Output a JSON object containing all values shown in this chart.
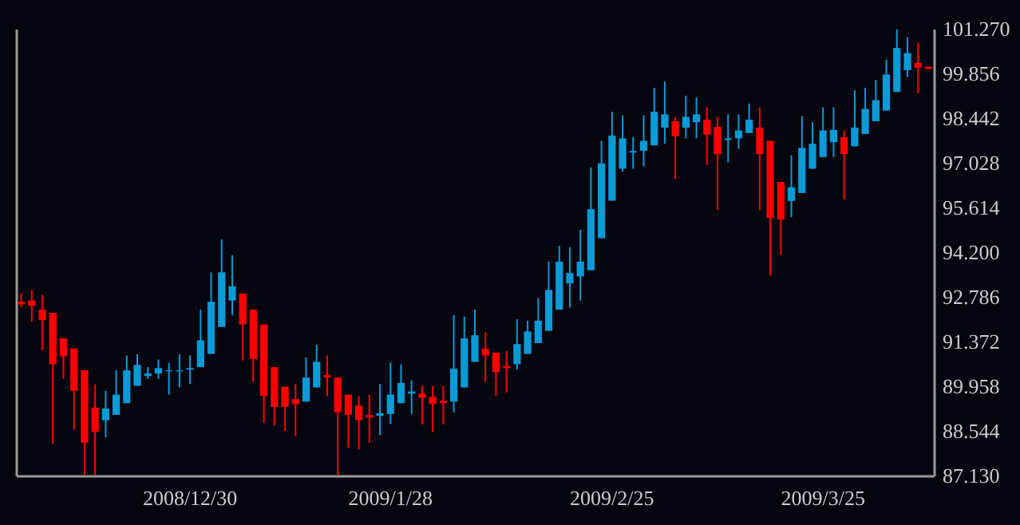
{
  "chart_data": {
    "type": "candlestick",
    "categories": [
      null,
      null,
      null,
      null,
      null,
      null,
      null,
      null,
      null,
      null,
      null,
      null,
      null,
      null,
      null,
      null,
      "2008/12/30",
      null,
      null,
      null,
      null,
      null,
      null,
      null,
      null,
      null,
      null,
      null,
      null,
      null,
      null,
      null,
      null,
      null,
      null,
      "2009/1/28",
      null,
      null,
      null,
      null,
      null,
      null,
      null,
      null,
      null,
      null,
      null,
      null,
      null,
      null,
      null,
      null,
      null,
      null,
      null,
      null,
      "2009/2/25",
      null,
      null,
      null,
      null,
      null,
      null,
      null,
      null,
      null,
      null,
      null,
      null,
      null,
      null,
      null,
      null,
      null,
      null,
      null,
      "2009/3/25",
      null,
      null,
      null,
      null,
      null,
      null,
      null,
      null,
      null,
      null
    ],
    "ohlc": [
      [
        92.63,
        92.89,
        92.45,
        92.55
      ],
      [
        92.67,
        93.0,
        92.0,
        92.5
      ],
      [
        92.38,
        92.84,
        91.1,
        92.05
      ],
      [
        92.28,
        92.28,
        88.12,
        90.65
      ],
      [
        91.47,
        91.47,
        90.19,
        90.9
      ],
      [
        91.15,
        91.15,
        88.58,
        89.81
      ],
      [
        90.46,
        90.46,
        87.13,
        88.17
      ],
      [
        89.28,
        90.01,
        87.13,
        88.51
      ],
      [
        88.88,
        89.81,
        88.34,
        89.25
      ],
      [
        89.05,
        90.46,
        89.05,
        89.69
      ],
      [
        89.42,
        90.93,
        89.42,
        90.46
      ],
      [
        89.97,
        90.97,
        89.97,
        90.63
      ],
      [
        90.28,
        90.56,
        90.19,
        90.36
      ],
      [
        90.36,
        90.8,
        90.19,
        90.53
      ],
      [
        90.43,
        90.7,
        89.69,
        90.46
      ],
      [
        90.43,
        90.97,
        89.92,
        90.46
      ],
      [
        90.48,
        90.93,
        90.03,
        90.53
      ],
      [
        90.56,
        92.38,
        90.56,
        91.41
      ],
      [
        90.98,
        93.56,
        90.98,
        92.63
      ],
      [
        91.83,
        94.6,
        91.83,
        93.56
      ],
      [
        92.67,
        94.1,
        92.21,
        93.12
      ],
      [
        92.89,
        92.89,
        90.77,
        91.91
      ],
      [
        92.38,
        92.38,
        90.09,
        90.82
      ],
      [
        91.91,
        91.91,
        88.8,
        89.64
      ],
      [
        90.56,
        90.56,
        88.71,
        89.3
      ],
      [
        89.94,
        89.94,
        88.54,
        89.3
      ],
      [
        89.55,
        90.03,
        88.38,
        89.39
      ],
      [
        89.47,
        90.87,
        89.47,
        90.23
      ],
      [
        89.92,
        91.27,
        89.92,
        90.73
      ],
      [
        90.31,
        90.93,
        89.64,
        90.23
      ],
      [
        90.23,
        90.23,
        87.13,
        89.13
      ],
      [
        89.69,
        89.69,
        88.01,
        89.05
      ],
      [
        89.34,
        89.64,
        87.95,
        88.88
      ],
      [
        89.05,
        89.69,
        88.17,
        88.97
      ],
      [
        89.02,
        90.03,
        88.41,
        89.1
      ],
      [
        89.08,
        90.7,
        88.76,
        89.69
      ],
      [
        89.42,
        90.65,
        89.42,
        90.06
      ],
      [
        89.72,
        90.14,
        89.08,
        89.79
      ],
      [
        89.72,
        89.97,
        88.75,
        89.59
      ],
      [
        89.62,
        89.96,
        88.51,
        89.39
      ],
      [
        89.5,
        89.97,
        88.75,
        89.42
      ],
      [
        89.47,
        92.21,
        89.13,
        90.51
      ],
      [
        89.92,
        92.16,
        89.92,
        91.47
      ],
      [
        90.73,
        92.38,
        90.73,
        91.57
      ],
      [
        91.14,
        91.66,
        90.09,
        90.93
      ],
      [
        91.02,
        91.02,
        89.64,
        90.4
      ],
      [
        90.6,
        91.07,
        89.76,
        90.53
      ],
      [
        90.65,
        92.08,
        90.48,
        91.29
      ],
      [
        90.98,
        92.03,
        90.98,
        91.69
      ],
      [
        91.32,
        92.75,
        91.32,
        92.03
      ],
      [
        91.71,
        93.9,
        91.71,
        93.0
      ],
      [
        92.38,
        94.4,
        92.38,
        93.9
      ],
      [
        93.21,
        94.35,
        92.45,
        93.54
      ],
      [
        93.43,
        94.91,
        92.67,
        93.9
      ],
      [
        93.63,
        96.88,
        93.63,
        95.56
      ],
      [
        94.64,
        97.72,
        94.64,
        97.01
      ],
      [
        95.83,
        98.64,
        95.83,
        97.89
      ],
      [
        96.84,
        98.53,
        96.74,
        97.8
      ],
      [
        97.35,
        97.84,
        96.84,
        97.4
      ],
      [
        97.41,
        98.53,
        96.91,
        97.72
      ],
      [
        97.58,
        99.4,
        97.58,
        98.64
      ],
      [
        98.14,
        99.6,
        97.63,
        98.56
      ],
      [
        98.34,
        98.48,
        96.51,
        97.87
      ],
      [
        98.14,
        99.15,
        97.8,
        98.48
      ],
      [
        98.31,
        99.1,
        97.8,
        98.56
      ],
      [
        98.39,
        98.78,
        96.96,
        97.92
      ],
      [
        98.17,
        98.48,
        95.53,
        97.3
      ],
      [
        97.75,
        98.56,
        97.04,
        97.8
      ],
      [
        97.8,
        98.56,
        97.47,
        98.05
      ],
      [
        97.97,
        98.9,
        97.97,
        98.39
      ],
      [
        98.14,
        98.78,
        95.53,
        97.3
      ],
      [
        97.72,
        97.72,
        93.46,
        95.28
      ],
      [
        96.42,
        96.42,
        94.1,
        95.23
      ],
      [
        95.82,
        97.26,
        95.31,
        96.25
      ],
      [
        96.07,
        98.51,
        96.07,
        97.5
      ],
      [
        96.84,
        98.31,
        96.84,
        97.63
      ],
      [
        97.21,
        98.78,
        97.21,
        98.05
      ],
      [
        97.68,
        98.78,
        97.21,
        98.07
      ],
      [
        97.84,
        98.05,
        95.87,
        97.3
      ],
      [
        97.55,
        99.32,
        97.55,
        98.14
      ],
      [
        97.94,
        99.4,
        97.94,
        98.73
      ],
      [
        98.34,
        99.65,
        98.34,
        99.01
      ],
      [
        98.68,
        100.29,
        98.68,
        99.82
      ],
      [
        99.27,
        101.25,
        99.27,
        100.66
      ],
      [
        99.96,
        101.0,
        99.74,
        100.5
      ],
      [
        100.19,
        100.83,
        99.23,
        100.04
      ],
      [
        100.07,
        100.07,
        100.0,
        100.0
      ]
    ],
    "colors": [
      "#ff0000",
      "#ff0000",
      "#ff0000",
      "#ff0000",
      "#ff0000",
      "#ff0000",
      "#ff0000",
      "#ff0000",
      "#0a9ad6",
      "#0a9ad6",
      "#0a9ad6",
      "#0a9ad6",
      "#0a9ad6",
      "#0a9ad6",
      "#0a9ad6",
      "#0a9ad6",
      "#0a9ad6",
      "#0a9ad6",
      "#0a9ad6",
      "#0a9ad6",
      "#0a9ad6",
      "#ff0000",
      "#ff0000",
      "#ff0000",
      "#ff0000",
      "#ff0000",
      "#ff0000",
      "#0a9ad6",
      "#0a9ad6",
      "#ff0000",
      "#ff0000",
      "#ff0000",
      "#ff0000",
      "#ff0000",
      "#0a9ad6",
      "#0a9ad6",
      "#0a9ad6",
      "#0a9ad6",
      "#ff0000",
      "#ff0000",
      "#ff0000",
      "#0a9ad6",
      "#0a9ad6",
      "#0a9ad6",
      "#ff0000",
      "#ff0000",
      "#ff0000",
      "#0a9ad6",
      "#0a9ad6",
      "#0a9ad6",
      "#0a9ad6",
      "#0a9ad6",
      "#0a9ad6",
      "#0a9ad6",
      "#0a9ad6",
      "#0a9ad6",
      "#0a9ad6",
      "#0a9ad6",
      "#0a9ad6",
      "#0a9ad6",
      "#0a9ad6",
      "#0a9ad6",
      "#ff0000",
      "#0a9ad6",
      "#0a9ad6",
      "#ff0000",
      "#ff0000",
      "#0a9ad6",
      "#0a9ad6",
      "#0a9ad6",
      "#ff0000",
      "#ff0000",
      "#ff0000",
      "#0a9ad6",
      "#0a9ad6",
      "#0a9ad6",
      "#0a9ad6",
      "#0a9ad6",
      "#ff0000",
      "#0a9ad6",
      "#0a9ad6",
      "#0a9ad6",
      "#0a9ad6",
      "#0a9ad6",
      "#0a9ad6",
      "#ff0000",
      "#ff0000"
    ],
    "ylim": [
      87.13,
      101.27
    ],
    "yticks": [
      {
        "value": 87.13,
        "label": "87.130"
      },
      {
        "value": 88.544,
        "label": "88.544"
      },
      {
        "value": 89.958,
        "label": "89.958"
      },
      {
        "value": 91.372,
        "label": "91.372"
      },
      {
        "value": 92.786,
        "label": "92.786"
      },
      {
        "value": 94.2,
        "label": "94.200"
      },
      {
        "value": 95.614,
        "label": "95.614"
      },
      {
        "value": 97.028,
        "label": "97.028"
      },
      {
        "value": 98.442,
        "label": "98.442"
      },
      {
        "value": 99.856,
        "label": "99.856"
      },
      {
        "value": 101.27,
        "label": "101.270"
      }
    ]
  }
}
